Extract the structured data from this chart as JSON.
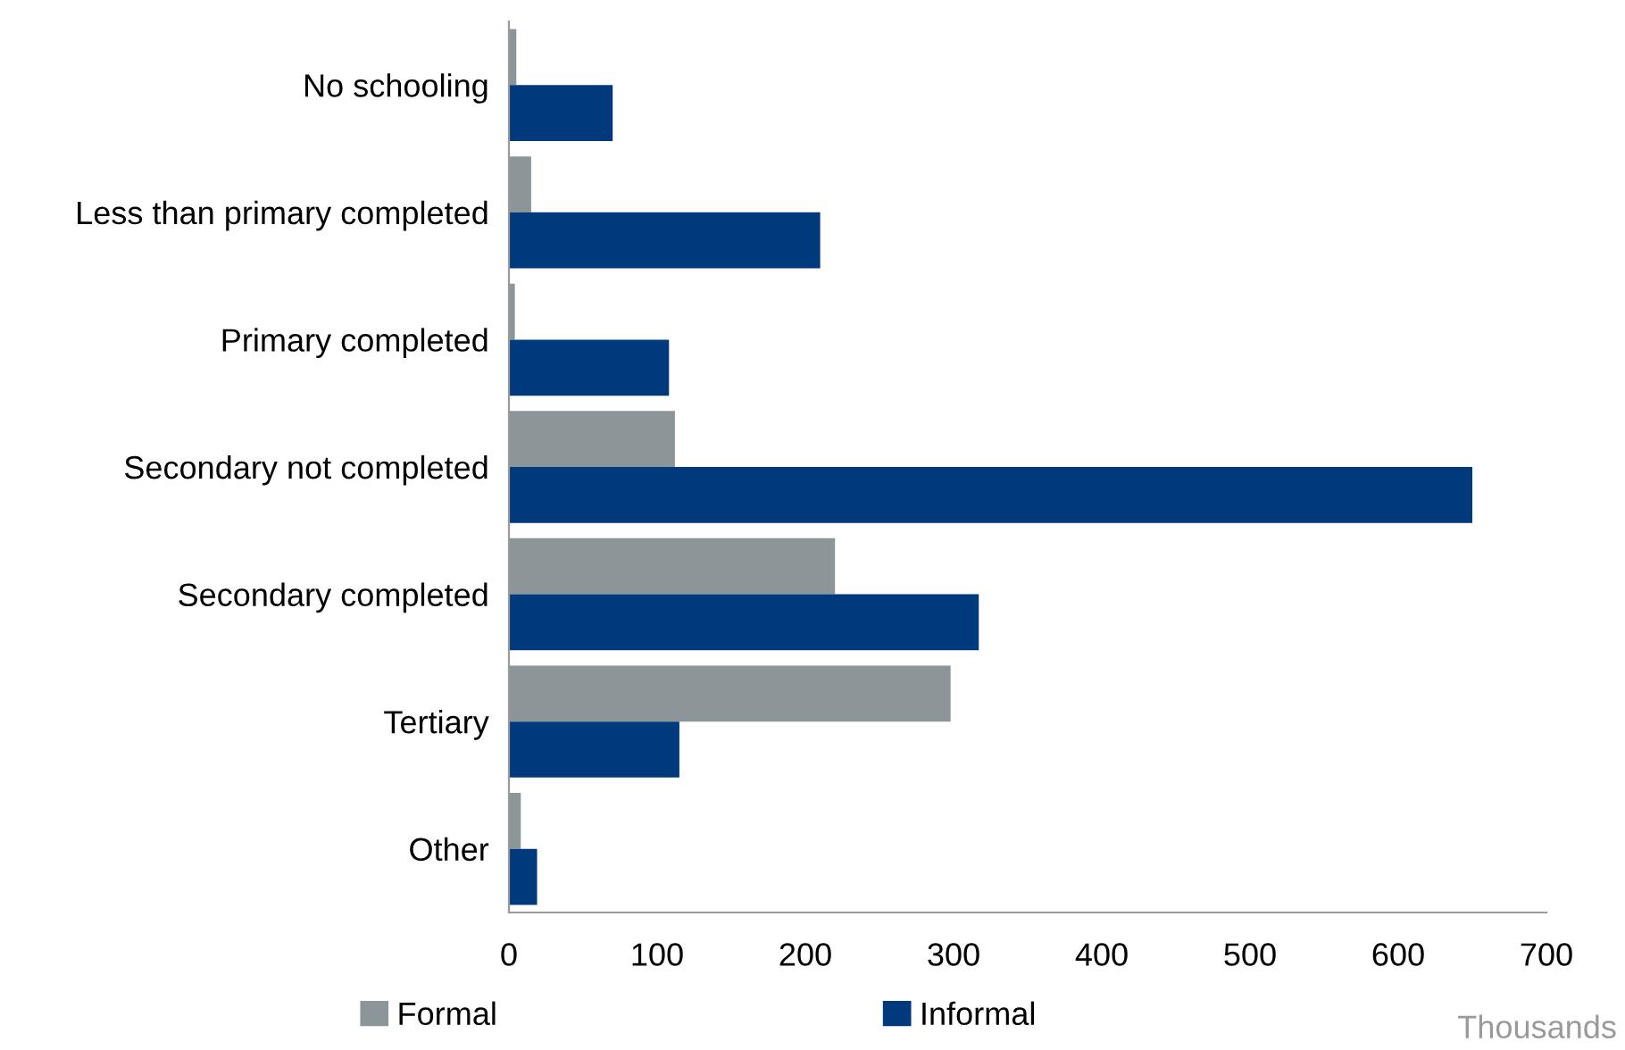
{
  "chart_data": {
    "type": "bar",
    "orientation": "horizontal",
    "categories": [
      "No schooling",
      "Less than primary completed",
      "Primary completed",
      "Secondary not completed",
      "Secondary completed",
      "Tertiary",
      "Other"
    ],
    "series": [
      {
        "name": "Formal",
        "color": "#8c9597",
        "values": [
          5,
          15,
          4,
          112,
          220,
          298,
          8
        ]
      },
      {
        "name": "Informal",
        "color": "#003a7d",
        "values": [
          70,
          210,
          108,
          650,
          317,
          115,
          19
        ]
      }
    ],
    "xlim": [
      0,
      700
    ],
    "xticks": [
      0,
      100,
      200,
      300,
      400,
      500,
      600,
      700
    ],
    "grid": false,
    "legend": "bottom",
    "annotations": [
      "Thousands"
    ]
  }
}
